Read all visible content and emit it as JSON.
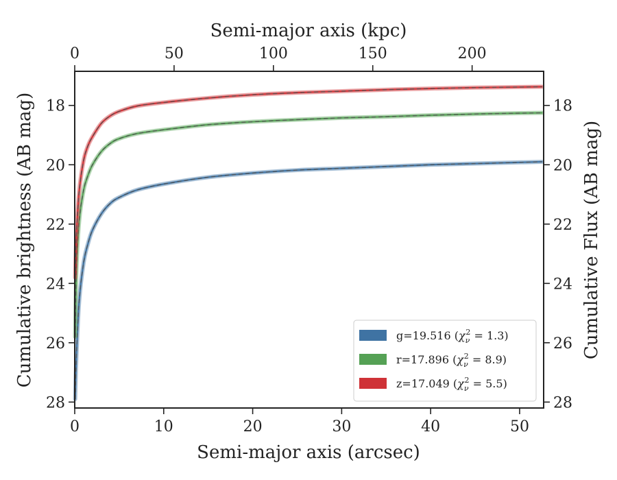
{
  "chart_data": {
    "type": "line",
    "xlabel": "Semi-major axis (arcsec)",
    "ylabel": "Cumulative brightness (AB mag)",
    "x2label": "Semi-major axis (kpc)",
    "y2label": "Cumulative Flux (AB mag)",
    "xlim": [
      0,
      52.7
    ],
    "ylim": [
      28.2,
      16.85
    ],
    "x2lim": [
      0,
      236
    ],
    "xticks": [
      "0",
      "10",
      "20",
      "30",
      "40",
      "50"
    ],
    "yticks": [
      "18",
      "20",
      "22",
      "24",
      "26",
      "28"
    ],
    "x2ticks": [
      "0",
      "50",
      "100",
      "150",
      "200"
    ],
    "y2ticks": [
      "18",
      "20",
      "22",
      "24",
      "26",
      "28"
    ],
    "legend_position": "lower right",
    "legend": [
      {
        "band": "g",
        "text": "g=19.516",
        "chi": "1.3",
        "color": "#3f73a3"
      },
      {
        "band": "r",
        "text": "r=17.896",
        "chi": "8.9",
        "color": "#55a155"
      },
      {
        "band": "z",
        "text": "z=17.049",
        "chi": "5.5",
        "color": "#cf3237"
      }
    ],
    "series": [
      {
        "band": "g",
        "color": "#3f73a3",
        "x": [
          0.05,
          0.2,
          0.5,
          1,
          1.5,
          2,
          3,
          4,
          5,
          7,
          10,
          15,
          20,
          25,
          30,
          35,
          40,
          45,
          50,
          52.5
        ],
        "y": [
          27.9,
          26.4,
          24.6,
          23.3,
          22.65,
          22.2,
          21.65,
          21.3,
          21.1,
          20.85,
          20.65,
          20.42,
          20.28,
          20.18,
          20.12,
          20.06,
          20.0,
          19.96,
          19.92,
          19.9
        ]
      },
      {
        "band": "r",
        "color": "#55a155",
        "x": [
          0.05,
          0.2,
          0.5,
          1,
          1.5,
          2,
          3,
          4,
          5,
          7,
          10,
          15,
          20,
          25,
          30,
          35,
          40,
          45,
          50,
          52.5
        ],
        "y": [
          25.8,
          23.5,
          21.9,
          20.85,
          20.35,
          20.0,
          19.55,
          19.28,
          19.12,
          18.95,
          18.82,
          18.65,
          18.55,
          18.48,
          18.42,
          18.38,
          18.33,
          18.29,
          18.26,
          18.25
        ]
      },
      {
        "band": "z",
        "color": "#cf3237",
        "x": [
          0.05,
          0.2,
          0.5,
          1,
          1.5,
          2,
          3,
          4,
          5,
          7,
          10,
          15,
          20,
          25,
          30,
          35,
          40,
          45,
          50,
          52.5
        ],
        "y": [
          23.8,
          22.3,
          20.9,
          19.85,
          19.35,
          19.05,
          18.6,
          18.35,
          18.2,
          18.02,
          17.9,
          17.75,
          17.64,
          17.57,
          17.52,
          17.47,
          17.43,
          17.4,
          17.38,
          17.37
        ]
      }
    ]
  }
}
